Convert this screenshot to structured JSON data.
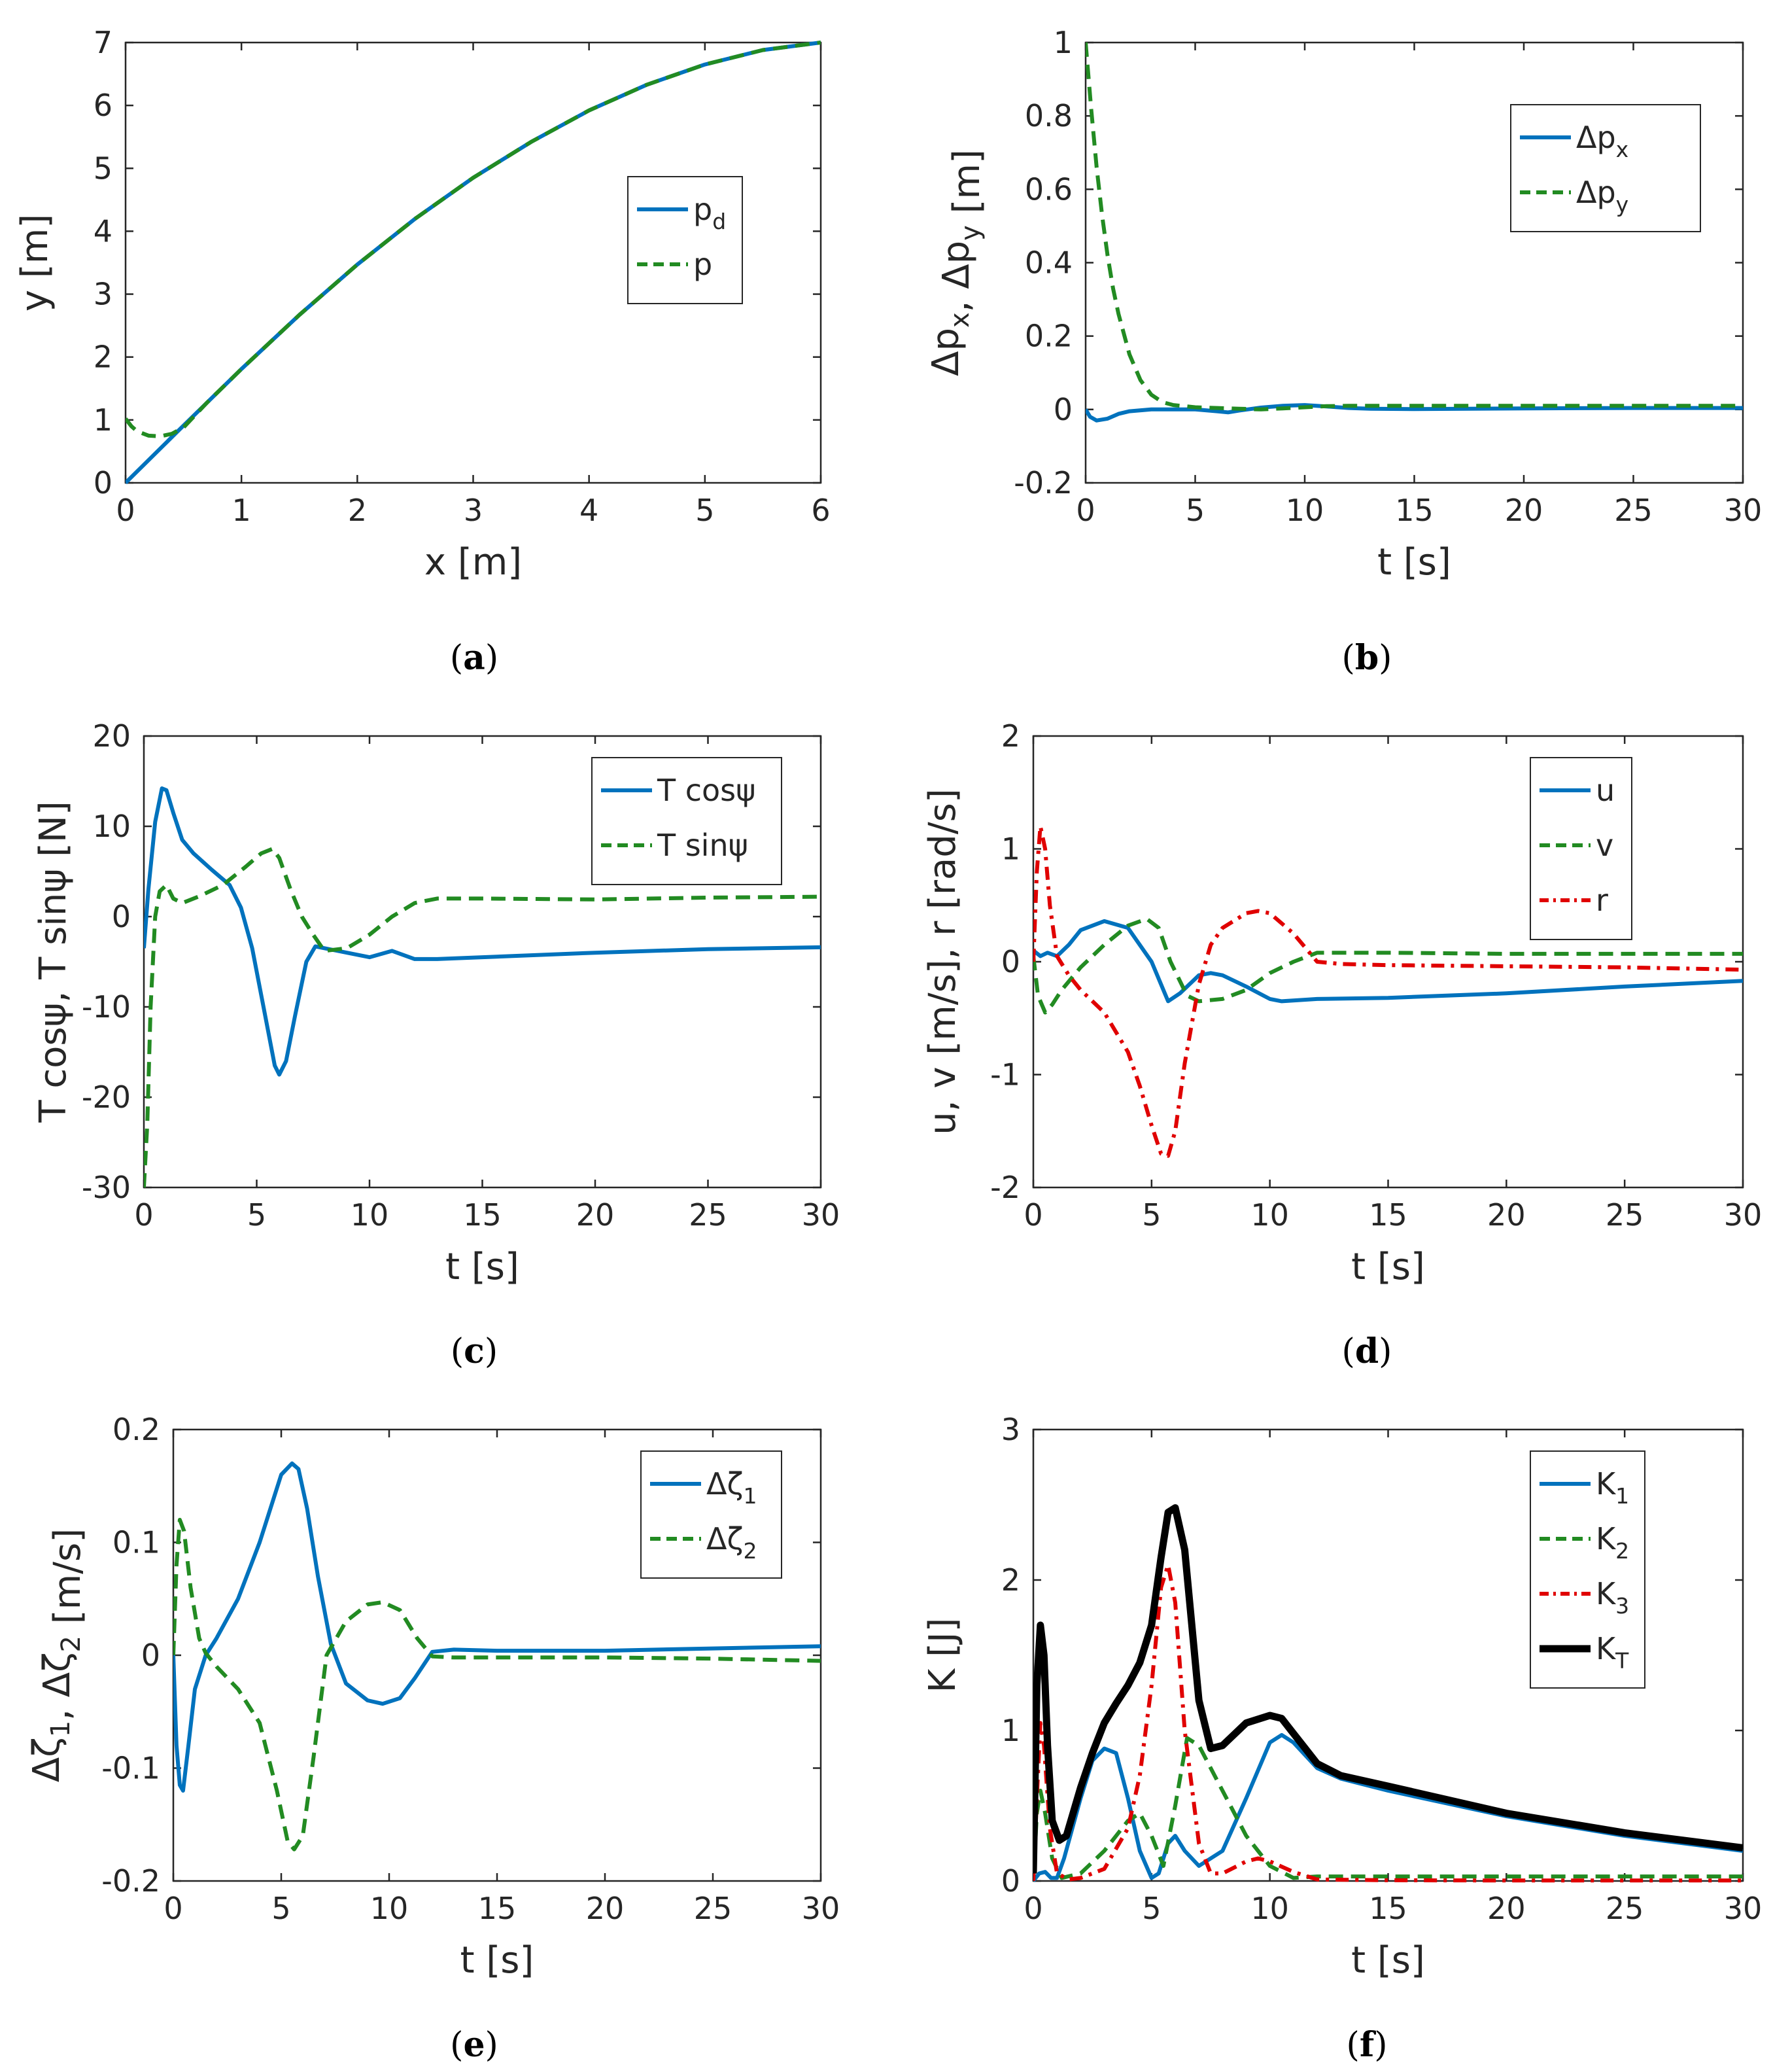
{
  "chart_data": [
    {
      "id": "a",
      "type": "line",
      "caption": "a",
      "xlabel": "x [m]",
      "ylabel": "y [m]",
      "xlim": [
        0,
        6
      ],
      "ylim": [
        0,
        7
      ],
      "xticks": [
        0,
        1,
        2,
        3,
        4,
        5,
        6
      ],
      "yticks": [
        0,
        1,
        2,
        3,
        4,
        5,
        6,
        7
      ],
      "legend_position": "center-right",
      "series": [
        {
          "name": "p",
          "sub": "d",
          "style": "solid",
          "color": "#0072BD",
          "x": [
            0,
            0.5,
            1,
            1.5,
            2,
            2.5,
            3,
            3.5,
            4,
            4.5,
            5,
            5.5,
            6
          ],
          "y": [
            0,
            0.91,
            1.81,
            2.67,
            3.47,
            4.2,
            4.85,
            5.42,
            5.92,
            6.33,
            6.65,
            6.88,
            7
          ]
        },
        {
          "name": "p",
          "sub": "",
          "style": "dashed",
          "color": "#228B22",
          "x": [
            0,
            0.05,
            0.1,
            0.2,
            0.3,
            0.4,
            0.5,
            0.7,
            1,
            1.5,
            2,
            2.5,
            3,
            3.5,
            4,
            4.5,
            5,
            5.5,
            6
          ],
          "y": [
            1.02,
            0.9,
            0.82,
            0.75,
            0.74,
            0.78,
            0.88,
            1.27,
            1.81,
            2.67,
            3.47,
            4.2,
            4.85,
            5.42,
            5.92,
            6.33,
            6.65,
            6.88,
            7
          ]
        }
      ]
    },
    {
      "id": "b",
      "type": "line",
      "caption": "b",
      "xlabel": "t [s]",
      "ylabel": "Δp_x, Δp_y [m]",
      "xlim": [
        0,
        30
      ],
      "ylim": [
        -0.2,
        1
      ],
      "xticks": [
        0,
        5,
        10,
        15,
        20,
        25,
        30
      ],
      "yticks": [
        -0.2,
        0,
        0.2,
        0.4,
        0.6,
        0.8,
        1
      ],
      "legend_position": "top-right",
      "series": [
        {
          "name": "Δp",
          "sub": "x",
          "style": "solid",
          "color": "#0072BD",
          "x": [
            0,
            0.2,
            0.5,
            1,
            1.5,
            2,
            3,
            4,
            5,
            6,
            6.5,
            7,
            8,
            9,
            10,
            11,
            12,
            13,
            15,
            20,
            25,
            30
          ],
          "y": [
            0,
            -0.02,
            -0.03,
            -0.025,
            -0.012,
            -0.005,
            0,
            0,
            0,
            -0.005,
            -0.008,
            -0.003,
            0.005,
            0.01,
            0.012,
            0.008,
            0.004,
            0.002,
            0.001,
            0.003,
            0.004,
            0.004
          ]
        },
        {
          "name": "Δp",
          "sub": "y",
          "style": "dashed",
          "color": "#228B22",
          "x": [
            0,
            0.25,
            0.5,
            0.75,
            1,
            1.25,
            1.5,
            2,
            2.5,
            3,
            3.5,
            4,
            5,
            6,
            7,
            8,
            9,
            10,
            11,
            12,
            15,
            20,
            25,
            30
          ],
          "y": [
            1.0,
            0.82,
            0.66,
            0.53,
            0.42,
            0.33,
            0.26,
            0.15,
            0.08,
            0.04,
            0.02,
            0.012,
            0.006,
            0.004,
            0.002,
            0.0,
            0.003,
            0.006,
            0.009,
            0.01,
            0.01,
            0.01,
            0.01,
            0.01
          ]
        }
      ]
    },
    {
      "id": "c",
      "type": "line",
      "caption": "c",
      "xlabel": "t [s]",
      "ylabel": "T cosψ, T sinψ [N]",
      "xlim": [
        0,
        30
      ],
      "ylim": [
        -30,
        20
      ],
      "xticks": [
        0,
        5,
        10,
        15,
        20,
        25,
        30
      ],
      "yticks": [
        -30,
        -20,
        -10,
        0,
        10,
        20
      ],
      "legend_position": "top-right",
      "series": [
        {
          "name": "T cosψ",
          "sub": "",
          "style": "solid",
          "color": "#0072BD",
          "x": [
            0,
            0.2,
            0.5,
            0.8,
            1,
            1.3,
            1.7,
            2.2,
            3,
            3.8,
            4.3,
            4.8,
            5.3,
            5.8,
            6.0,
            6.3,
            6.7,
            7.2,
            7.6,
            8,
            9,
            10,
            11,
            12,
            13,
            15,
            20,
            25,
            30
          ],
          "y": [
            -3.5,
            3,
            10.5,
            14.2,
            14,
            11.5,
            8.5,
            7,
            5.2,
            3.5,
            1,
            -3.5,
            -10,
            -16.5,
            -17.5,
            -16,
            -11,
            -5,
            -3.3,
            -3.5,
            -4,
            -4.5,
            -3.8,
            -4.7,
            -4.7,
            -4.5,
            -4.0,
            -3.6,
            -3.4
          ]
        },
        {
          "name": "T sinψ",
          "sub": "",
          "style": "dashed",
          "color": "#228B22",
          "x": [
            0,
            0.15,
            0.3,
            0.5,
            0.7,
            1,
            1.3,
            1.7,
            2.5,
            3.5,
            4.5,
            5.2,
            5.7,
            6,
            6.5,
            7,
            7.5,
            8,
            9,
            10,
            11,
            12,
            13,
            15,
            20,
            25,
            30
          ],
          "y": [
            -30,
            -23,
            -10,
            0,
            2.8,
            3.5,
            2,
            1.5,
            2.3,
            3.5,
            5.5,
            7,
            7.5,
            6.5,
            3,
            0,
            -2,
            -3.8,
            -3.5,
            -2,
            0,
            1.5,
            2,
            2,
            1.9,
            2.1,
            2.2
          ]
        }
      ]
    },
    {
      "id": "d",
      "type": "line",
      "caption": "d",
      "xlabel": "t [s]",
      "ylabel": "u, v [m/s], r [rad/s]",
      "xlim": [
        0,
        30
      ],
      "ylim": [
        -2,
        2
      ],
      "xticks": [
        0,
        5,
        10,
        15,
        20,
        25,
        30
      ],
      "yticks": [
        -2,
        -1,
        0,
        1,
        2
      ],
      "legend_position": "top-right",
      "series": [
        {
          "name": "u",
          "sub": "",
          "style": "solid",
          "color": "#0072BD",
          "x": [
            0,
            0.3,
            0.6,
            1,
            1.5,
            2,
            3,
            4,
            5,
            5.7,
            6.2,
            7,
            7.5,
            8,
            9,
            10,
            10.5,
            12,
            15,
            20,
            25,
            30
          ],
          "y": [
            0.1,
            0.05,
            0.08,
            0.05,
            0.15,
            0.28,
            0.36,
            0.3,
            0.0,
            -0.35,
            -0.28,
            -0.12,
            -0.1,
            -0.12,
            -0.22,
            -0.33,
            -0.35,
            -0.33,
            -0.32,
            -0.28,
            -0.22,
            -0.17
          ]
        },
        {
          "name": "v",
          "sub": "",
          "style": "dashed",
          "color": "#228B22",
          "x": [
            0,
            0.2,
            0.5,
            0.8,
            1.2,
            2,
            3,
            4,
            4.8,
            5.3,
            5.8,
            6.5,
            7,
            8,
            9,
            10,
            11,
            12,
            15,
            20,
            25,
            30
          ],
          "y": [
            0.05,
            -0.3,
            -0.45,
            -0.38,
            -0.25,
            -0.05,
            0.15,
            0.32,
            0.38,
            0.3,
            0.0,
            -0.3,
            -0.35,
            -0.33,
            -0.25,
            -0.1,
            0.0,
            0.08,
            0.08,
            0.07,
            0.07,
            0.07
          ]
        },
        {
          "name": "r",
          "sub": "",
          "style": "dashdot",
          "color": "#E00000",
          "x": [
            0,
            0.15,
            0.3,
            0.5,
            0.7,
            1,
            1.5,
            2,
            3,
            4,
            4.5,
            5,
            5.4,
            5.7,
            6,
            6.4,
            7,
            7.5,
            8,
            9,
            9.5,
            10,
            11,
            12,
            13,
            15,
            20,
            25,
            30
          ],
          "y": [
            0.0,
            0.8,
            1.2,
            1.0,
            0.5,
            0.05,
            -0.12,
            -0.25,
            -0.45,
            -0.8,
            -1.1,
            -1.45,
            -1.7,
            -1.72,
            -1.5,
            -0.9,
            -0.2,
            0.15,
            0.3,
            0.43,
            0.45,
            0.43,
            0.25,
            0.0,
            -0.02,
            -0.03,
            -0.04,
            -0.05,
            -0.07
          ]
        }
      ]
    },
    {
      "id": "e",
      "type": "line",
      "caption": "e",
      "xlabel": "t [s]",
      "ylabel": "Δζ_1, Δζ_2 [m/s]",
      "xlim": [
        0,
        30
      ],
      "ylim": [
        -0.2,
        0.2
      ],
      "xticks": [
        0,
        5,
        10,
        15,
        20,
        25,
        30
      ],
      "yticks": [
        -0.2,
        -0.1,
        0,
        0.1,
        0.2
      ],
      "legend_position": "top-right",
      "series": [
        {
          "name": "Δζ",
          "sub": "1",
          "style": "solid",
          "color": "#0072BD",
          "x": [
            0,
            0.15,
            0.3,
            0.45,
            0.7,
            1,
            1.5,
            2,
            3,
            4,
            5,
            5.5,
            5.8,
            6.2,
            6.7,
            7.3,
            8,
            9,
            9.7,
            10.5,
            11.2,
            12,
            13,
            15,
            20,
            25,
            30
          ],
          "y": [
            0,
            -0.08,
            -0.115,
            -0.12,
            -0.08,
            -0.03,
            0,
            0.015,
            0.05,
            0.1,
            0.16,
            0.17,
            0.165,
            0.13,
            0.07,
            0.01,
            -0.025,
            -0.04,
            -0.043,
            -0.038,
            -0.02,
            0.003,
            0.005,
            0.004,
            0.004,
            0.006,
            0.008
          ]
        },
        {
          "name": "Δζ",
          "sub": "2",
          "style": "dashed",
          "color": "#228B22",
          "x": [
            0,
            0.15,
            0.3,
            0.5,
            0.8,
            1.2,
            1.5,
            2,
            3,
            4,
            4.8,
            5.3,
            5.6,
            6,
            6.5,
            7.1,
            8,
            9,
            9.7,
            10.5,
            11.3,
            12,
            13,
            15,
            20,
            25,
            30
          ],
          "y": [
            0,
            0.08,
            0.12,
            0.11,
            0.06,
            0.015,
            0.002,
            -0.01,
            -0.03,
            -0.06,
            -0.12,
            -0.165,
            -0.172,
            -0.16,
            -0.09,
            0.0,
            0.03,
            0.045,
            0.047,
            0.04,
            0.015,
            -0.001,
            -0.002,
            -0.002,
            -0.002,
            -0.003,
            -0.005
          ]
        }
      ]
    },
    {
      "id": "f",
      "type": "line",
      "caption": "f",
      "xlabel": "t [s]",
      "ylabel": "K [J]",
      "xlim": [
        0,
        30
      ],
      "ylim": [
        0,
        3
      ],
      "xticks": [
        0,
        5,
        10,
        15,
        20,
        25,
        30
      ],
      "yticks": [
        0,
        1,
        2,
        3
      ],
      "legend_position": "top-right",
      "series": [
        {
          "name": "K",
          "sub": "1",
          "style": "solid",
          "color": "#0072BD",
          "x": [
            0,
            0.25,
            0.5,
            0.75,
            1,
            1.3,
            2,
            2.5,
            3,
            3.5,
            4,
            4.5,
            5,
            5.3,
            5.7,
            6.0,
            6.4,
            7,
            8,
            9,
            10,
            10.5,
            11,
            12,
            13,
            15,
            20,
            25,
            30
          ],
          "y": [
            0,
            0.05,
            0.06,
            0.02,
            0.02,
            0.15,
            0.55,
            0.8,
            0.88,
            0.85,
            0.55,
            0.2,
            0.02,
            0.05,
            0.25,
            0.3,
            0.2,
            0.1,
            0.2,
            0.55,
            0.92,
            0.97,
            0.92,
            0.75,
            0.68,
            0.6,
            0.43,
            0.3,
            0.2
          ]
        },
        {
          "name": "K",
          "sub": "2",
          "style": "dashed",
          "color": "#228B22",
          "x": [
            0,
            0.15,
            0.3,
            0.5,
            0.8,
            1.2,
            2,
            3,
            4,
            4.5,
            5,
            5.5,
            6,
            6.5,
            7,
            8,
            9,
            10,
            11,
            12,
            15,
            20,
            25,
            30
          ],
          "y": [
            0,
            0.45,
            0.6,
            0.45,
            0.15,
            0.02,
            0.05,
            0.2,
            0.4,
            0.45,
            0.3,
            0.1,
            0.5,
            0.95,
            0.9,
            0.6,
            0.3,
            0.1,
            0.02,
            0.03,
            0.03,
            0.03,
            0.03,
            0.03
          ]
        },
        {
          "name": "K",
          "sub": "3",
          "style": "dashdot",
          "color": "#E00000",
          "x": [
            0,
            0.15,
            0.3,
            0.45,
            0.7,
            1,
            1.5,
            2,
            3,
            4,
            4.5,
            5,
            5.4,
            5.7,
            6,
            6.4,
            7,
            7.5,
            8,
            9,
            9.5,
            10,
            11,
            12,
            15,
            20,
            25,
            30
          ],
          "y": [
            0,
            0.55,
            1.05,
            0.9,
            0.35,
            0.05,
            0.01,
            0.02,
            0.08,
            0.35,
            0.7,
            1.3,
            1.95,
            2.1,
            1.85,
            1.0,
            0.25,
            0.05,
            0.05,
            0.13,
            0.15,
            0.13,
            0.06,
            0.01,
            0.005,
            0.003,
            0.003,
            0.003
          ]
        },
        {
          "name": "K",
          "sub": "T",
          "style": "solid-thick",
          "color": "#000000",
          "x": [
            0,
            0.15,
            0.3,
            0.45,
            0.6,
            0.8,
            1.1,
            1.4,
            2,
            2.5,
            3,
            3.5,
            4,
            4.5,
            5,
            5.4,
            5.7,
            6.0,
            6.4,
            7,
            7.5,
            8,
            9,
            10,
            10.5,
            11,
            12,
            13,
            15,
            20,
            25,
            30
          ],
          "y": [
            0.05,
            1.3,
            1.7,
            1.5,
            0.9,
            0.4,
            0.27,
            0.3,
            0.62,
            0.85,
            1.05,
            1.18,
            1.3,
            1.45,
            1.7,
            2.15,
            2.45,
            2.48,
            2.2,
            1.2,
            0.88,
            0.9,
            1.05,
            1.1,
            1.08,
            0.98,
            0.78,
            0.7,
            0.63,
            0.45,
            0.32,
            0.22
          ]
        }
      ]
    }
  ]
}
